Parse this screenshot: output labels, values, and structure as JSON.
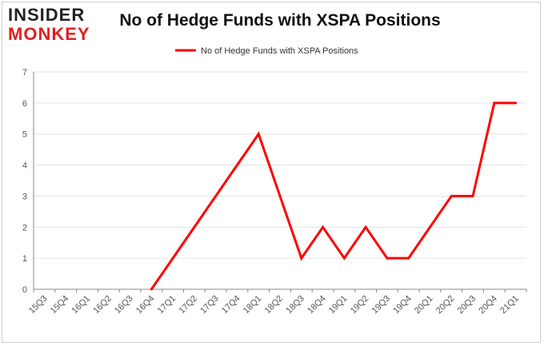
{
  "logo": {
    "line1": "INSIDER",
    "line2": "MONKEY"
  },
  "chart_data": {
    "type": "line",
    "title": "No of Hedge Funds with XSPA Positions",
    "xlabel": "",
    "ylabel": "",
    "categories": [
      "15Q3",
      "15Q4",
      "16Q1",
      "16Q2",
      "16Q3",
      "16Q4",
      "17Q1",
      "17Q2",
      "17Q3",
      "17Q4",
      "18Q1",
      "18Q2",
      "18Q3",
      "18Q4",
      "19Q1",
      "19Q2",
      "19Q3",
      "19Q4",
      "20Q1",
      "20Q2",
      "20Q3",
      "20Q4",
      "21Q1"
    ],
    "series": [
      {
        "name": "No of Hedge Funds with XSPA Positions",
        "color": "#ff0000",
        "points": [
          {
            "x": "16Q4",
            "y": 0
          },
          {
            "x": "18Q1",
            "y": 5
          },
          {
            "x": "18Q3",
            "y": 1
          },
          {
            "x": "18Q4",
            "y": 2
          },
          {
            "x": "19Q1",
            "y": 1
          },
          {
            "x": "19Q2",
            "y": 2
          },
          {
            "x": "19Q3",
            "y": 1
          },
          {
            "x": "19Q4",
            "y": 1
          },
          {
            "x": "20Q2",
            "y": 3
          },
          {
            "x": "20Q3",
            "y": 3
          },
          {
            "x": "20Q4",
            "y": 6
          },
          {
            "x": "21Q1",
            "y": 6
          }
        ]
      }
    ],
    "ylim": [
      0,
      7
    ],
    "yticks": [
      0,
      1,
      2,
      3,
      4,
      5,
      6,
      7
    ],
    "grid": true,
    "legend": "top-center"
  }
}
